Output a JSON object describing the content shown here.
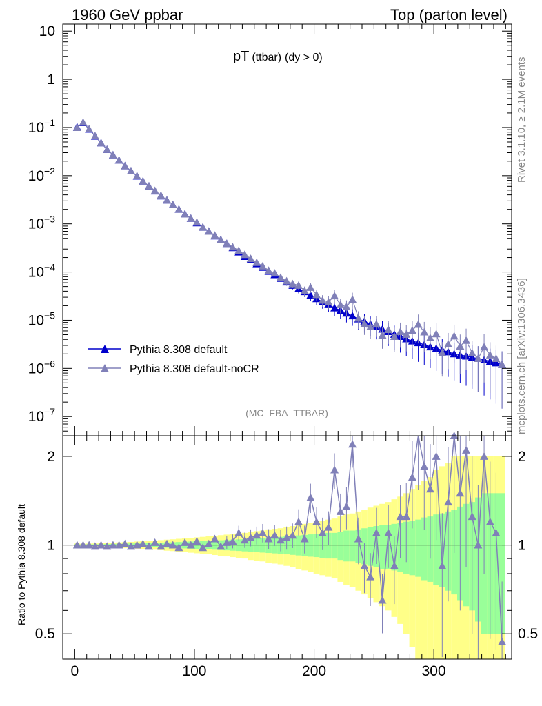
{
  "header": {
    "left": "1960 GeV ppbar",
    "right": "Top (parton level)"
  },
  "plot_title": {
    "main": "pT",
    "sub": "(ttbar)",
    "cut": "(dy > 0)"
  },
  "analysis_label": "(MC_FBA_TTBAR)",
  "side_labels": {
    "rivet": "Rivet 3.1.10, ≥ 2.1M events",
    "mcplots": "mcplots.cern.ch [arXiv:1306.3436]"
  },
  "ratio_ylabel": "Ratio to Pythia 8.308 default",
  "legend": [
    {
      "label": "Pythia 8.308 default",
      "color": "#0000cc"
    },
    {
      "label": "Pythia 8.308 default-noCR",
      "color": "#8080b8"
    }
  ],
  "colors": {
    "series1": "#0000cc",
    "series2": "#8080b8",
    "band_inner": "#99ff99",
    "band_outer": "#ffff88"
  },
  "chart_data": [
    {
      "type": "line",
      "panel": "main",
      "yscale": "log",
      "xlim": [
        -10,
        365
      ],
      "ylim": [
        4e-08,
        14
      ],
      "x_ticks": [
        0,
        100,
        200,
        300
      ],
      "y_ticks": [
        {
          "value": 10,
          "label": "10"
        },
        {
          "value": 1,
          "label": "1"
        },
        {
          "value": 0.1,
          "base": "10",
          "exp": "−1"
        },
        {
          "value": 0.01,
          "base": "10",
          "exp": "−2"
        },
        {
          "value": 0.001,
          "base": "10",
          "exp": "−3"
        },
        {
          "value": 0.0001,
          "base": "10",
          "exp": "−4"
        },
        {
          "value": 1e-05,
          "base": "10",
          "exp": "−5"
        },
        {
          "value": 1e-06,
          "base": "10",
          "exp": "−6"
        },
        {
          "value": 1e-07,
          "base": "10",
          "exp": "−7"
        }
      ],
      "x": [
        2,
        7,
        12,
        17,
        22,
        27,
        32,
        37,
        42,
        47,
        52,
        57,
        62,
        67,
        72,
        77,
        82,
        87,
        92,
        97,
        102,
        107,
        112,
        117,
        122,
        127,
        132,
        137,
        142,
        147,
        152,
        157,
        162,
        167,
        172,
        177,
        182,
        187,
        192,
        197,
        202,
        207,
        212,
        217,
        222,
        227,
        232,
        237,
        242,
        247,
        252,
        257,
        262,
        267,
        272,
        277,
        282,
        287,
        292,
        297,
        302,
        307,
        312,
        317,
        322,
        327,
        332,
        337,
        342,
        347,
        352,
        357
      ],
      "series": [
        {
          "name": "Pythia 8.308 default",
          "values": [
            0.102,
            0.126,
            0.092,
            0.066,
            0.048,
            0.035,
            0.027,
            0.021,
            0.016,
            0.0125,
            0.0098,
            0.0077,
            0.0061,
            0.0048,
            0.0038,
            0.0031,
            0.0025,
            0.002,
            0.0016,
            0.0013,
            0.00105,
            0.00085,
            0.0007,
            0.00056,
            0.00047,
            0.00039,
            0.00032,
            0.00026,
            0.00021,
            0.00018,
            0.000148,
            0.000125,
            0.000103,
            8.8e-05,
            7.4e-05,
            6.2e-05,
            5.3e-05,
            4.5e-05,
            3.9e-05,
            3.3e-05,
            2.8e-05,
            2.4e-05,
            2.1e-05,
            1.8e-05,
            1.6e-05,
            1.4e-05,
            1.23e-05,
            1.06e-05,
            9.5e-06,
            8.3e-06,
            7.4e-06,
            6.5e-06,
            5.8e-06,
            5.1e-06,
            4.6e-06,
            4.1e-06,
            3.7e-06,
            3.4e-06,
            3.1e-06,
            2.8e-06,
            2.6e-06,
            2.4e-06,
            2.2e-06,
            2e-06,
            1.9e-06,
            1.8e-06,
            1.7e-06,
            1.6e-06,
            1.5e-06,
            1.4e-06,
            1.3e-06,
            1.2e-06
          ]
        },
        {
          "name": "Pythia 8.308 default-noCR",
          "values": [
            0.1,
            0.128,
            0.093,
            0.067,
            0.048,
            0.035,
            0.027,
            0.021,
            0.016,
            0.0126,
            0.0099,
            0.0077,
            0.0061,
            0.0049,
            0.0039,
            0.0031,
            0.0025,
            0.002,
            0.0016,
            0.0013,
            0.00108,
            0.00085,
            0.0007,
            0.00058,
            0.00047,
            0.00039,
            0.00033,
            0.00028,
            0.00023,
            0.00019,
            0.000158,
            0.000133,
            0.000108,
            9.5e-05,
            7.7e-05,
            6.5e-05,
            5.7e-05,
            5.3e-05,
            4.1e-05,
            4.8e-05,
            3.4e-05,
            2.6e-05,
            2.4e-05,
            3.2e-05,
            2.1e-05,
            1.9e-05,
            2.7e-05,
            1.1e-05,
            8.5e-06,
            7.3e-06,
            8.3e-06,
            4.9e-06,
            6.4e-06,
            4.6e-06,
            5.8e-06,
            5.1e-06,
            6.2e-06,
            8.2e-06,
            5.7e-06,
            4.3e-06,
            5.2e-06,
            2.1e-06,
            3.2e-06,
            4.7e-06,
            2.9e-06,
            3.8e-06,
            2.1e-06,
            1.6e-06,
            2.8e-06,
            1.9e-06,
            1.6e-06,
            1.2e-06
          ]
        }
      ]
    },
    {
      "type": "line",
      "panel": "ratio",
      "yscale": "log",
      "xlim": [
        -10,
        365
      ],
      "ylim": [
        0.41,
        2.35
      ],
      "y_ticks": [
        0.5,
        1,
        2
      ],
      "x": [
        2,
        7,
        12,
        17,
        22,
        27,
        32,
        37,
        42,
        47,
        52,
        57,
        62,
        67,
        72,
        77,
        82,
        87,
        92,
        97,
        102,
        107,
        112,
        117,
        122,
        127,
        132,
        137,
        142,
        147,
        152,
        157,
        162,
        167,
        172,
        177,
        182,
        187,
        192,
        197,
        202,
        207,
        212,
        217,
        222,
        227,
        232,
        237,
        242,
        247,
        252,
        257,
        262,
        267,
        272,
        277,
        282,
        287,
        292,
        297,
        302,
        307,
        312,
        317,
        322,
        327,
        332,
        337,
        342,
        347,
        352,
        357
      ],
      "band_inner": [
        0.006,
        0.005,
        0.006,
        0.006,
        0.007,
        0.008,
        0.009,
        0.01,
        0.011,
        0.012,
        0.013,
        0.014,
        0.016,
        0.017,
        0.019,
        0.021,
        0.022,
        0.024,
        0.026,
        0.028,
        0.03,
        0.032,
        0.034,
        0.036,
        0.038,
        0.04,
        0.043,
        0.045,
        0.048,
        0.051,
        0.054,
        0.057,
        0.06,
        0.063,
        0.066,
        0.07,
        0.074,
        0.078,
        0.082,
        0.087,
        0.09,
        0.095,
        0.1,
        0.1,
        0.11,
        0.12,
        0.12,
        0.13,
        0.14,
        0.15,
        0.16,
        0.17,
        0.17,
        0.18,
        0.19,
        0.2,
        0.21,
        0.22,
        0.24,
        0.25,
        0.27,
        0.28,
        0.3,
        0.32,
        0.35,
        0.38,
        0.4,
        0.45,
        0.5,
        0.5,
        0.5,
        0.5
      ],
      "band_outer": [
        0.012,
        0.01,
        0.012,
        0.013,
        0.015,
        0.017,
        0.019,
        0.021,
        0.023,
        0.025,
        0.028,
        0.03,
        0.033,
        0.036,
        0.039,
        0.043,
        0.046,
        0.05,
        0.054,
        0.058,
        0.062,
        0.066,
        0.07,
        0.075,
        0.08,
        0.085,
        0.09,
        0.095,
        0.1,
        0.11,
        0.115,
        0.12,
        0.13,
        0.135,
        0.14,
        0.15,
        0.16,
        0.17,
        0.18,
        0.19,
        0.2,
        0.21,
        0.22,
        0.23,
        0.25,
        0.27,
        0.28,
        0.3,
        0.32,
        0.34,
        0.36,
        0.38,
        0.4,
        0.43,
        0.46,
        0.5,
        0.55,
        0.6,
        0.65,
        0.7,
        0.8,
        0.85,
        0.9,
        1.0,
        1.0,
        1.0,
        1.0,
        1.0,
        1.0,
        1.0,
        1.0,
        1.0
      ],
      "series": [
        {
          "name": "Pythia 8.308 default-noCR",
          "values": [
            1.0,
            1.0,
            1.0,
            0.99,
            1.0,
            0.99,
            1.0,
            1.0,
            1.01,
            0.99,
            1.0,
            1.01,
            0.99,
            1.02,
            0.99,
            1.01,
            1.0,
            0.98,
            1.02,
            1.0,
            1.03,
            0.98,
            1.01,
            1.05,
            0.99,
            1.02,
            1.03,
            1.1,
            1.04,
            1.06,
            1.08,
            1.1,
            1.05,
            1.08,
            1.04,
            1.06,
            1.08,
            1.2,
            1.05,
            1.45,
            1.2,
            1.1,
            1.15,
            1.8,
            1.3,
            1.35,
            2.2,
            1.05,
            0.85,
            0.78,
            1.1,
            0.65,
            1.1,
            0.85,
            1.25,
            1.25,
            1.7,
            2.4,
            1.85,
            1.55,
            2.0,
            0.85,
            1.4,
            2.35,
            1.5,
            2.1,
            1.25,
            1.0,
            2.0,
            1.2,
            1.1,
            0.47
          ]
        }
      ]
    }
  ]
}
